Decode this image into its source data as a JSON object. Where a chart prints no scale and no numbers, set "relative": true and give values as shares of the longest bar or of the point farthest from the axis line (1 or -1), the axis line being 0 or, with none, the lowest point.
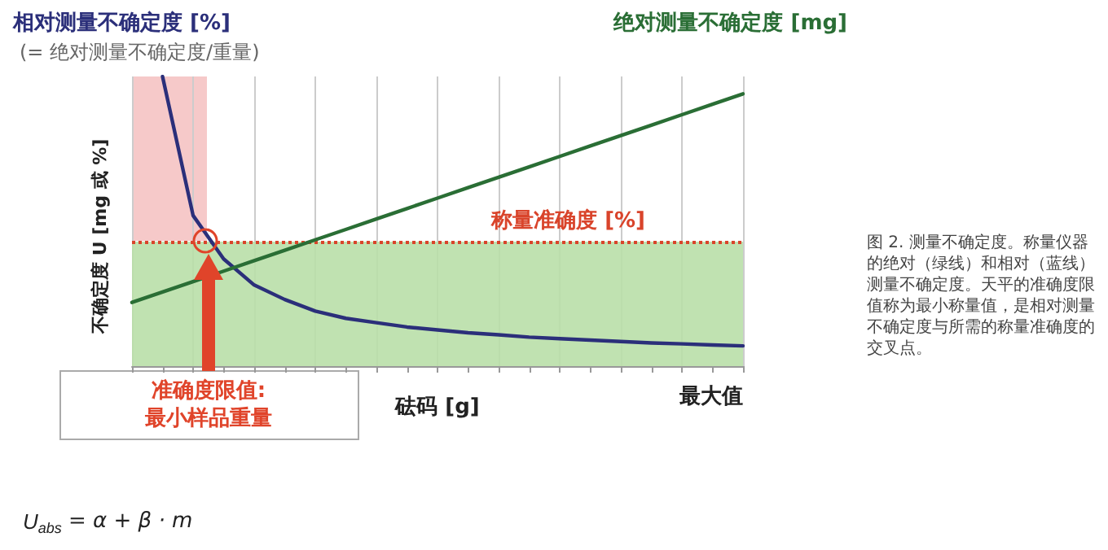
{
  "chart_data": {
    "type": "line",
    "relative": true,
    "xlabel": "砝码 [g]",
    "ylabel": "不确定度 U [mg 或 %]",
    "categories": [
      null,
      null,
      null,
      null,
      null,
      null,
      null,
      null,
      null,
      null,
      null,
      null,
      null,
      null,
      null,
      null,
      null,
      null,
      null,
      null,
      null
    ],
    "series": [
      {
        "name": "相对测量不确定度 [%]",
        "color": "#2b2f7a",
        "values": [
          null,
          1.0,
          0.52,
          0.37,
          0.28,
          0.23,
          0.19,
          0.165,
          0.15,
          0.135,
          0.125,
          0.115,
          0.108,
          0.1,
          0.095,
          0.09,
          0.085,
          0.08,
          0.077,
          0.073,
          0.07
        ]
      },
      {
        "name": "绝对测量不确定度 [mg]",
        "color": "#2a6e35",
        "values": [
          0.22,
          0.256,
          0.292,
          0.328,
          0.364,
          0.4,
          0.436,
          0.472,
          0.508,
          0.544,
          0.58,
          0.616,
          0.652,
          0.688,
          0.724,
          0.76,
          0.796,
          0.832,
          0.868,
          0.904,
          0.94
        ]
      }
    ],
    "ref_lines": [
      {
        "axis": "y",
        "value": 0.43,
        "label": "称量准确度 [%]",
        "color": "#d9442b",
        "line_style": "dotted"
      }
    ],
    "bands": [
      {
        "axis": "y",
        "from": 0,
        "to": 0.43,
        "color": "#b9dfa8"
      }
    ],
    "annotations": [
      "(= 绝对测量不确定度/重量)",
      "准确度限值:\n最小样品重量",
      "图 2. 测量不确定度。称量仪器的绝对（绿线）和相对（蓝线）测量不确定度。天平的准确度限值称为最小称量值，是相对测量不确定度与所需的称量准确度的交叉点。",
      "U$_{abs}$ = α + β · m",
      "最大值"
    ],
    "grid": "x",
    "legend": false,
    "marker": "none",
    "line_style": "solid"
  }
}
